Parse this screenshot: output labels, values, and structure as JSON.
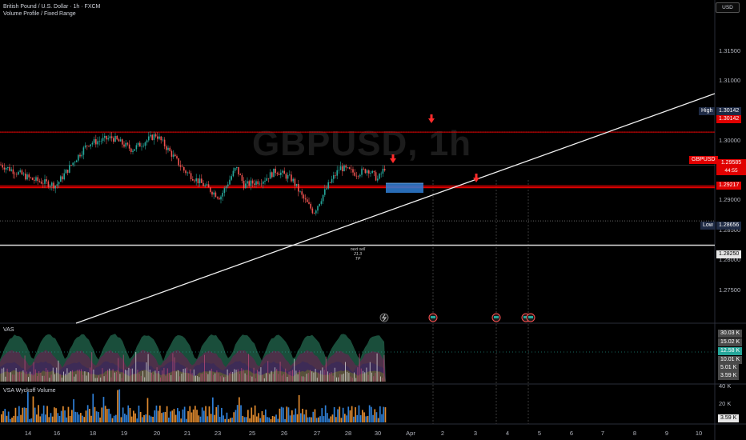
{
  "header": {
    "title": "British Pound / U.S. Dollar · 1h · FXCM",
    "indicator": "Volume Profile / Fixed Range"
  },
  "watermark": "GBPUSD, 1h",
  "currency_button": "USD",
  "price_axis": {
    "labels": [
      "1.31500",
      "1.31000",
      "1.30500",
      "1.30000",
      "1.29500",
      "1.29000",
      "1.28500",
      "1.28000",
      "1.27500"
    ],
    "range": [
      1.272,
      1.3195
    ]
  },
  "tags": {
    "high": {
      "name": "High",
      "value": "1.30142"
    },
    "resistance": "1.30142",
    "symbol": {
      "name": "GBPUSD",
      "price": "1.29585",
      "countdown": "44:55"
    },
    "support": "1.29217",
    "low": {
      "name": "Low",
      "value": "1.28656"
    },
    "tp": "1.28250"
  },
  "levels": {
    "high": 1.30142,
    "resistance": 1.30142,
    "support": 1.29217,
    "support2": 1.29245,
    "low": 1.28656,
    "tp": 1.2825,
    "current": 1.29585
  },
  "annotation": {
    "line1": "next sell",
    "line2": "21.3",
    "line3": "TP"
  },
  "panes": {
    "vas": {
      "label": "VAS",
      "values": [
        "30.03 K",
        "15.02 K",
        "12.58 K",
        "10.01 K",
        "5.01 K",
        "3.59 K"
      ]
    },
    "wyckoff": {
      "label": "VSA Wyckoff Volume",
      "values": [
        "40 K",
        "20 K",
        "3.59 K"
      ]
    }
  },
  "time_axis": {
    "labels": [
      "14",
      "16",
      "18",
      "19",
      "20",
      "21",
      "23",
      "25",
      "26",
      "27",
      "28",
      "30",
      "Apr",
      "2",
      "3",
      "4",
      "5",
      "6",
      "7",
      "8",
      "9",
      "10",
      "11",
      "13"
    ]
  },
  "colors": {
    "up": "#26a69a",
    "down": "#ef5350",
    "red_line": "#e00000",
    "bg": "#000000",
    "orange": "#e08a2e",
    "blue": "#2f7fd6"
  },
  "event_icons": [
    "lightning-icon",
    "calendar-flag-icon",
    "calendar-flag-icon",
    "calendar-flag-icon",
    "calendar-flag-icon"
  ]
}
